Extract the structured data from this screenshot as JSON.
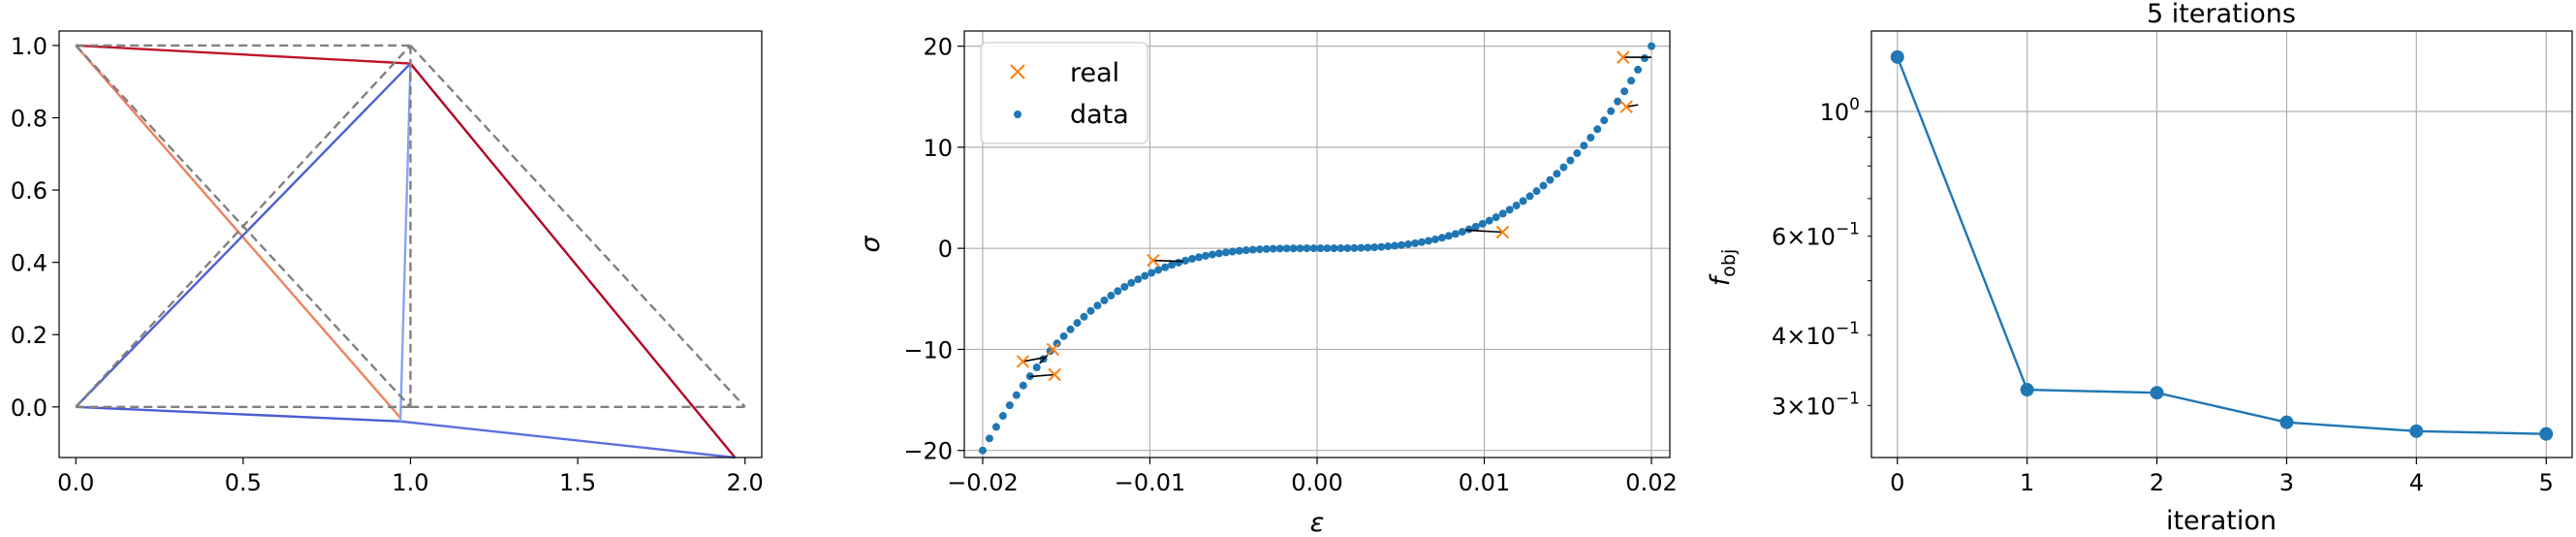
{
  "figure": {
    "panels": 3
  },
  "chart_data": [
    {
      "type": "line",
      "name": "truss",
      "xlim": [
        -0.05,
        2.05
      ],
      "ylim": [
        -0.14,
        1.04
      ],
      "grid": false,
      "xticks": [
        0.0,
        0.5,
        1.0,
        1.5,
        2.0
      ],
      "xtick_labels": [
        "0.0",
        "0.5",
        "1.0",
        "1.5",
        "2.0"
      ],
      "yticks": [
        0.0,
        0.2,
        0.4,
        0.6,
        0.8,
        1.0
      ],
      "ytick_labels": [
        "0.0",
        "0.2",
        "0.4",
        "0.6",
        "0.8",
        "1.0"
      ],
      "reference_nodes": [
        [
          0,
          0
        ],
        [
          1,
          0
        ],
        [
          2,
          0
        ],
        [
          0,
          1
        ],
        [
          1,
          1
        ]
      ],
      "reference_bars": [
        [
          0,
          1
        ],
        [
          1,
          2
        ],
        [
          3,
          4
        ],
        [
          0,
          4
        ],
        [
          3,
          1
        ],
        [
          4,
          2
        ],
        [
          1,
          4
        ]
      ],
      "deformed_bars": [
        {
          "from": [
            0,
            1
          ],
          "to": [
            1,
            0.95
          ],
          "color": "#c0142a"
        },
        {
          "from": [
            1,
            0.95
          ],
          "to": [
            1.97,
            -0.14
          ],
          "color": "#b40426"
        },
        {
          "from": [
            0,
            1
          ],
          "to": [
            0.97,
            -0.03
          ],
          "color": "#f08160"
        },
        {
          "from": [
            0,
            0
          ],
          "to": [
            1,
            0.95
          ],
          "color": "#4c5fd6"
        },
        {
          "from": [
            0,
            0
          ],
          "to": [
            0.97,
            -0.04
          ],
          "color": "#4a5fd0"
        },
        {
          "from": [
            0.97,
            -0.04
          ],
          "to": [
            1.97,
            -0.14
          ],
          "color": "#5a70de"
        },
        {
          "from": [
            0.97,
            -0.04
          ],
          "to": [
            1,
            0.95
          ],
          "color": "#86a6f8"
        }
      ],
      "reference_color": "#808080"
    },
    {
      "type": "scatter",
      "name": "stress-strain",
      "xlabel": "ε",
      "ylabel": "σ",
      "xlim": [
        -0.0211,
        0.0211
      ],
      "ylim": [
        -20.7,
        21.5
      ],
      "grid": true,
      "xticks": [
        -0.02,
        -0.01,
        0.0,
        0.01,
        0.02
      ],
      "xtick_labels": [
        "−0.02",
        "−0.01",
        "0.00",
        "0.01",
        "0.02"
      ],
      "yticks": [
        -20,
        -10,
        0,
        10,
        20
      ],
      "ytick_labels": [
        "−20",
        "−10",
        "0",
        "10",
        "20"
      ],
      "data_curve": {
        "form": "sigma = k * eps^3",
        "k": 2500000,
        "x_min": -0.02,
        "x_max": 0.02,
        "points": 100
      },
      "series": [
        {
          "name": "real",
          "marker": "x",
          "color": "#ff7f0e",
          "points": [
            [
              -0.0176,
              -11.2
            ],
            [
              -0.0158,
              -10.0
            ],
            [
              -0.0157,
              -12.5
            ],
            [
              -0.0098,
              -1.2
            ],
            [
              0.0111,
              1.6
            ],
            [
              0.0185,
              14.0
            ],
            [
              0.0183,
              18.9
            ]
          ]
        },
        {
          "name": "data",
          "marker": "dot",
          "color": "#1f77b4"
        }
      ],
      "links": [
        [
          [
            -0.0176,
            -11.2
          ],
          [
            -0.0163,
            -10.8
          ]
        ],
        [
          [
            -0.0158,
            -10.0
          ],
          [
            -0.0166,
            -11.4
          ]
        ],
        [
          [
            -0.0157,
            -12.5
          ],
          [
            -0.0172,
            -12.7
          ]
        ],
        [
          [
            -0.0098,
            -1.2
          ],
          [
            -0.008,
            -1.3
          ]
        ],
        [
          [
            0.0111,
            1.6
          ],
          [
            0.0089,
            1.8
          ]
        ],
        [
          [
            0.0185,
            14.0
          ],
          [
            0.0192,
            14.2
          ]
        ],
        [
          [
            0.0183,
            18.9
          ],
          [
            0.02,
            18.9
          ]
        ]
      ],
      "legend": {
        "position": "top-left",
        "entries": [
          "real",
          "data"
        ]
      }
    },
    {
      "type": "line",
      "name": "convergence",
      "title": "5 iterations",
      "xlabel": "iteration",
      "ylabel": "f",
      "ylabel_sub": "obj",
      "yscale": "log",
      "grid": true,
      "xlim": [
        -0.2,
        5.2
      ],
      "ylim": [
        0.2424,
        1.3904
      ],
      "x": [
        0,
        1,
        2,
        3,
        4,
        5
      ],
      "values": [
        1.25,
        0.32,
        0.316,
        0.28,
        0.27,
        0.267
      ],
      "xticks": [
        0,
        1,
        2,
        3,
        4,
        5
      ],
      "xtick_labels": [
        "0",
        "1",
        "2",
        "3",
        "4",
        "5"
      ],
      "ymajor": [
        {
          "value": 1.0,
          "base": "10",
          "exp": "0"
        }
      ],
      "yminor": [
        {
          "value": 0.6,
          "mant": "6",
          "exp": "−1"
        },
        {
          "value": 0.4,
          "mant": "4",
          "exp": "−1"
        },
        {
          "value": 0.3,
          "mant": "3",
          "exp": "−1"
        }
      ],
      "ylabel_color": "#000000",
      "line_color": "#1f77b4"
    }
  ]
}
